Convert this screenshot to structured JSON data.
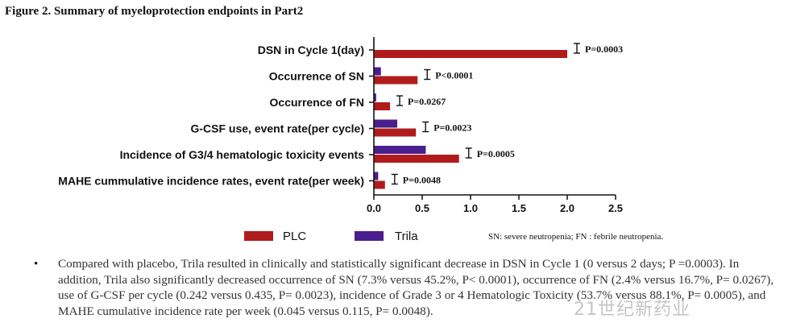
{
  "chart_data": {
    "type": "bar",
    "orientation": "horizontal",
    "title": "Figure 2. Summary of myeloprotection endpoints in Part2",
    "categories": [
      "DSN in Cycle 1(day)",
      "Occurrence of SN",
      "Occurrence of FN",
      "G-CSF use, event rate(per cycle)",
      "Incidence of G3/4 hematologic toxicity events",
      "MAHE cummulative incidence rates, event rate(per week)"
    ],
    "series": [
      {
        "name": "Trila",
        "color": "#4a1e8c",
        "values": [
          0,
          0.073,
          0.024,
          0.242,
          0.537,
          0.045
        ]
      },
      {
        "name": "PLC",
        "color": "#b01c1c",
        "values": [
          2.0,
          0.452,
          0.167,
          0.435,
          0.881,
          0.115
        ]
      }
    ],
    "p_values": [
      "P=0.0003",
      "P<0.0001",
      "P=0.0267",
      "P=0.0023",
      "P=0.0005",
      "P=0.0048"
    ],
    "xlim": [
      0,
      2.5
    ],
    "xticks": [
      "0.0",
      "0.5",
      "1.0",
      "1.5",
      "2.0",
      "2.5"
    ],
    "xtick_values": [
      0,
      0.5,
      1.0,
      1.5,
      2.0,
      2.5
    ],
    "legend": [
      "PLC",
      "Trila"
    ],
    "legend_position": "bottom-left",
    "footnote": "SN: severe neutropenia; FN : febrile neutropenia."
  },
  "bullet": "•",
  "summary_text": "Compared with placebo, Trila resulted in clinically and statistically significant decrease in DSN in Cycle 1 (0 versus 2 days; P =0.0003). In addition, Trila also significantly decreased occurrence of SN (7.3% versus 45.2%, P< 0.0001), occurrence of FN (2.4% versus 16.7%, P= 0.0267), use of G-CSF per cycle (0.242 versus 0.435, P= 0.0023), incidence of Grade 3 or 4 Hematologic Toxicity (53.7% versus 88.1%, P= 0.0005), and MAHE cumulative incidence rate per week (0.045 versus 0.115, P= 0.0048).",
  "watermark": "21世纪新药业"
}
